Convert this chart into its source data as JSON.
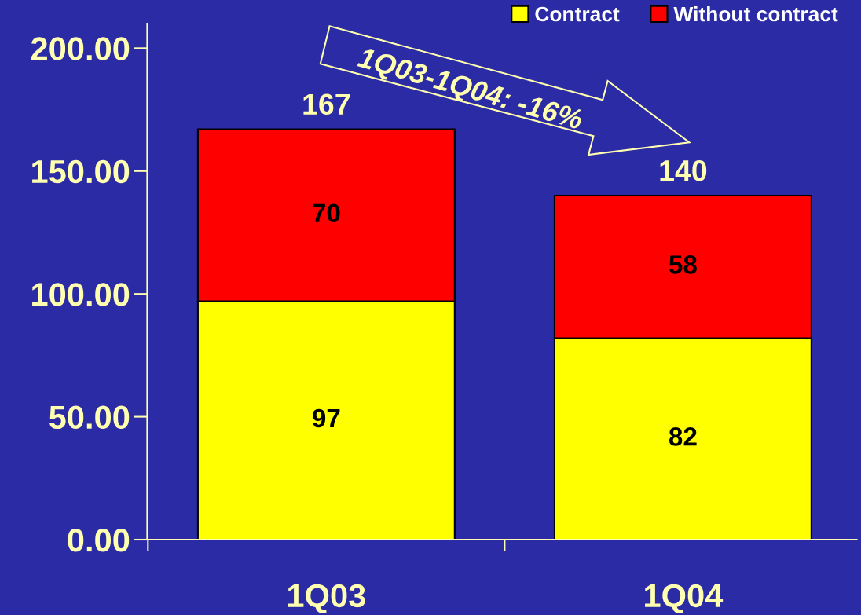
{
  "chart_data": {
    "type": "bar",
    "stacked": true,
    "categories": [
      "1Q03",
      "1Q04"
    ],
    "series": [
      {
        "name": "Contract",
        "color": "#ffff00",
        "values": [
          97,
          82
        ]
      },
      {
        "name": "Without contract",
        "color": "#ff0000",
        "values": [
          70,
          58
        ]
      }
    ],
    "ylim": [
      0,
      210
    ],
    "yticks": [
      {
        "value": 0,
        "label": "0.00"
      },
      {
        "value": 50,
        "label": "50.00"
      },
      {
        "value": 100,
        "label": "100.00"
      },
      {
        "value": 150,
        "label": "150.00"
      },
      {
        "value": 200,
        "label": "200.00"
      }
    ],
    "data_labels": true,
    "totals": [
      "167",
      "140"
    ],
    "legend": "top right",
    "grid": false,
    "annotations": [
      "1Q03-1Q04: -16%"
    ]
  }
}
